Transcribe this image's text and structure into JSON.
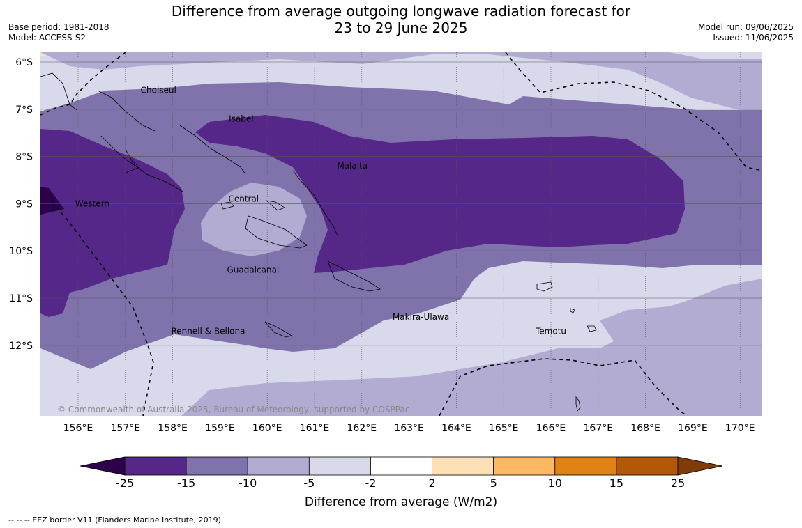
{
  "title_line1": "Difference from average outgoing longwave radiation forecast for",
  "title_line2": "23 to 29 June 2025",
  "base_period": "Base period: 1981-2018",
  "model": "Model: ACCESS-S2",
  "model_run": "Model run: 09/06/2025",
  "issued": "Issued: 11/06/2025",
  "copyright": "© Commonwealth of Australia 2025, Bureau of Meteorology, supported by COSPPac",
  "footnote": "--  --  -- EEZ border V11 (Flanders Marine Institute, 2019).",
  "lat_labels": [
    "6°S",
    "7°S",
    "8°S",
    "9°S",
    "10°S",
    "11°S",
    "12°S"
  ],
  "lon_labels": [
    "156°E",
    "157°E",
    "158°E",
    "159°E",
    "160°E",
    "161°E",
    "162°E",
    "163°E",
    "164°E",
    "165°E",
    "166°E",
    "167°E",
    "168°E",
    "169°E",
    "170°E"
  ],
  "regions": [
    {
      "name": "Choiseul",
      "lon": 157.7,
      "lat": -6.6
    },
    {
      "name": "Isabel",
      "lon": 159.45,
      "lat": -7.2
    },
    {
      "name": "Malaita",
      "lon": 161.8,
      "lat": -8.2
    },
    {
      "name": "Western",
      "lon": 156.3,
      "lat": -9.0
    },
    {
      "name": "Central",
      "lon": 159.5,
      "lat": -8.9
    },
    {
      "name": "Guadalcanal",
      "lon": 159.7,
      "lat": -10.4
    },
    {
      "name": "Makira-Ulawa",
      "lon": 163.25,
      "lat": -11.4
    },
    {
      "name": "Rennell & Bellona",
      "lon": 158.75,
      "lat": -11.7
    },
    {
      "name": "Temotu",
      "lon": 166.0,
      "lat": -11.7
    }
  ],
  "colorbar": {
    "label": "Difference from average (W/m2)",
    "ticks": [
      "-25",
      "-15",
      "-10",
      "-5",
      "-2",
      "2",
      "5",
      "10",
      "15",
      "25"
    ],
    "colors": [
      "#2d004b",
      "#542788",
      "#8073ac",
      "#b2abd2",
      "#d8daeb",
      "#ffffff",
      "#fee0b6",
      "#fdb863",
      "#e08214",
      "#b35806",
      "#7f3b08"
    ]
  },
  "colors": {
    "le_minus25": "#2d004b",
    "minus25_to_minus15": "#542788",
    "minus15_to_minus10": "#8073ac",
    "minus10_to_minus5": "#b2abd2",
    "minus5_to_minus2": "#d8daeb",
    "plus2_to_plus5": "#fee0b6"
  }
}
